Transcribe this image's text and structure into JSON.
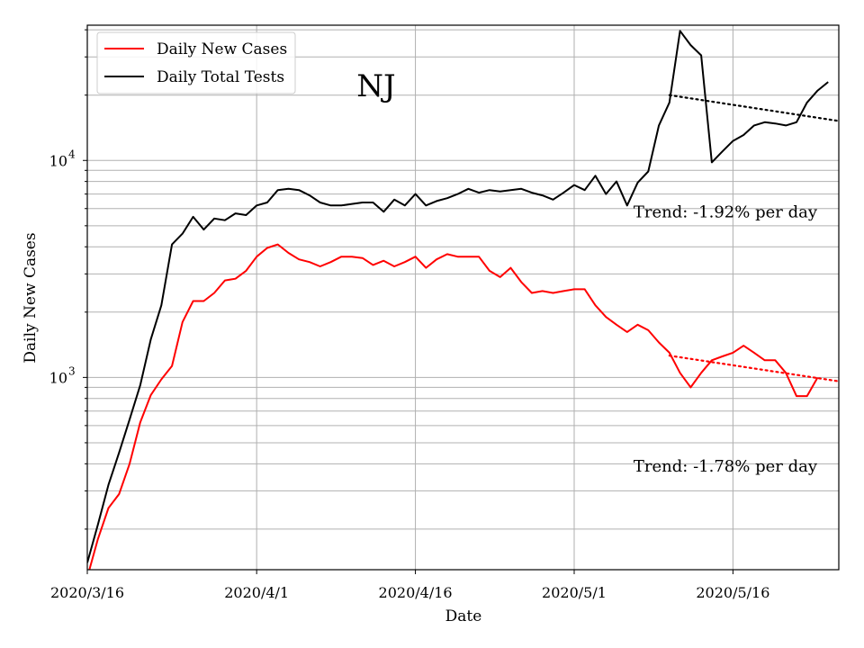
{
  "chart_data": {
    "type": "line",
    "title": "NJ",
    "xlabel": "Date",
    "ylabel": "Daily New Cases",
    "yscale": "log",
    "ylim": [
      130,
      42000
    ],
    "xlim": [
      "2020-03-16",
      "2020-05-26"
    ],
    "x_ticks": [
      {
        "date": "2020-03-16",
        "label": "2020/3/16"
      },
      {
        "date": "2020-04-01",
        "label": "2020/4/1"
      },
      {
        "date": "2020-04-16",
        "label": "2020/4/16"
      },
      {
        "date": "2020-05-01",
        "label": "2020/5/1"
      },
      {
        "date": "2020-05-16",
        "label": "2020/5/16"
      }
    ],
    "y_ticks": [
      {
        "value": 1000,
        "base": "10",
        "exp": "3"
      },
      {
        "value": 10000,
        "base": "10",
        "exp": "4"
      }
    ],
    "grid": true,
    "legend_position": "top-left",
    "series": [
      {
        "name": "Daily New Cases",
        "color": "#ff0000",
        "start_date": "2020-03-16",
        "values": [
          120,
          180,
          250,
          290,
          400,
          620,
          830,
          980,
          1130,
          1800,
          2250,
          2250,
          2450,
          2800,
          2850,
          3100,
          3600,
          3950,
          4100,
          3750,
          3500,
          3400,
          3250,
          3400,
          3600,
          3600,
          3550,
          3300,
          3450,
          3250,
          3400,
          3600,
          3200,
          3500,
          3700,
          3600,
          3600,
          3600,
          3100,
          2900,
          3200,
          2750,
          2450,
          2500,
          2450,
          2500,
          2550,
          2550,
          2150,
          1900,
          1750,
          1620,
          1750,
          1650,
          1450,
          1300,
          1050,
          900,
          1050,
          1200,
          1250,
          1300,
          1400,
          1300,
          1200,
          1200,
          1050,
          820,
          820,
          1000
        ]
      },
      {
        "name": "Daily Total Tests",
        "color": "#000000",
        "start_date": "2020-03-16",
        "values": [
          140,
          210,
          320,
          450,
          640,
          920,
          1500,
          2150,
          4100,
          4600,
          5500,
          4800,
          5400,
          5300,
          5700,
          5600,
          6200,
          6400,
          7300,
          7400,
          7300,
          6900,
          6400,
          6200,
          6200,
          6300,
          6400,
          6400,
          5800,
          6600,
          6200,
          7000,
          6200,
          6500,
          6700,
          7000,
          7400,
          7100,
          7300,
          7200,
          7300,
          7400,
          7100,
          6900,
          6600,
          7100,
          7700,
          7300,
          8500,
          7000,
          8000,
          6200,
          7900,
          8900,
          14500,
          18500,
          39500,
          34000,
          30500,
          9800,
          11000,
          12300,
          13100,
          14500,
          15000,
          14800,
          14500,
          15000,
          18500,
          21000,
          23000
        ]
      }
    ],
    "trend_lines": [
      {
        "color": "#ff0000",
        "start_date": "2020-05-10",
        "end_date": "2020-05-26",
        "start_value": 1260,
        "end_value": 960
      },
      {
        "color": "#000000",
        "start_date": "2020-05-10",
        "end_date": "2020-05-26",
        "start_value": 20000,
        "end_value": 15200
      }
    ],
    "annotations": [
      {
        "text": "Trend: -1.92% per day",
        "date": "2020-05-26",
        "value": 5800
      },
      {
        "text": "Trend: -1.78% per day",
        "date": "2020-05-26",
        "value": 390
      }
    ]
  }
}
